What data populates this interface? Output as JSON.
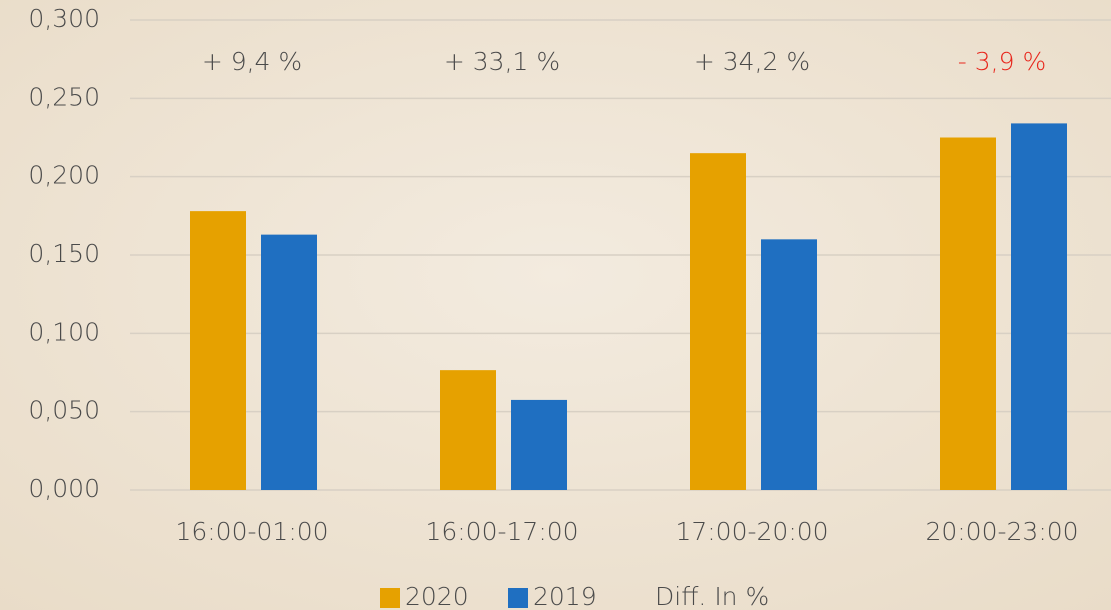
{
  "chart_data": {
    "type": "bar",
    "categories": [
      "16:00-01:00",
      "16:00-17:00",
      "17:00-20:00",
      "20:00-23:00"
    ],
    "series": [
      {
        "name": "2020",
        "color": "#e6a100",
        "values": [
          0.178,
          0.0765,
          0.215,
          0.225
        ]
      },
      {
        "name": "2019",
        "color": "#1f6fc1",
        "values": [
          0.163,
          0.0575,
          0.16,
          0.234
        ]
      },
      {
        "name": "Diff. In %",
        "values": [
          9.4,
          33.1,
          34.2,
          -3.9
        ],
        "value_labels": [
          "+ 9,4 %",
          "+ 33,1 %",
          "+ 34,2 %",
          "- 3,9 %"
        ],
        "value_label_colors": [
          "#4a4a4a",
          "#4a4a4a",
          "#4a4a4a",
          "#e8261c"
        ]
      }
    ],
    "ylim": [
      0,
      0.3
    ],
    "yticks": [
      {
        "value": 0,
        "label": "0,000"
      },
      {
        "value": 0.05,
        "label": "0,050"
      },
      {
        "value": 0.1,
        "label": "0,100"
      },
      {
        "value": 0.15,
        "label": "0,150"
      },
      {
        "value": 0.2,
        "label": "0,200"
      },
      {
        "value": 0.25,
        "label": "0,250"
      },
      {
        "value": 0.3,
        "label": "0,300"
      }
    ],
    "grid": true
  }
}
